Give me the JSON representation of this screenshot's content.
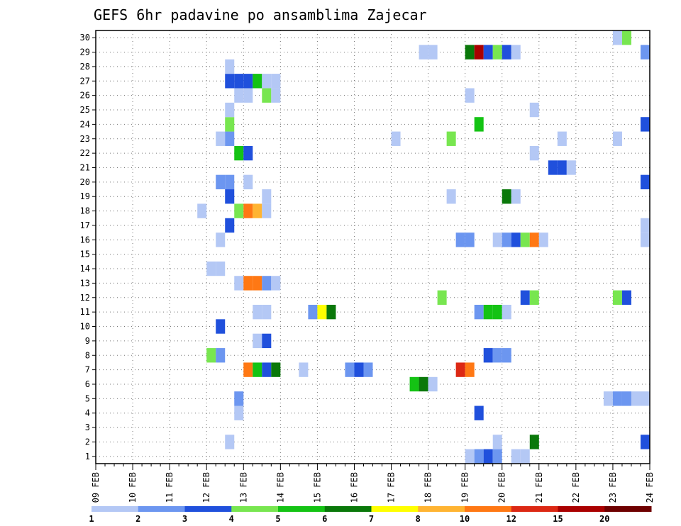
{
  "chart_data": {
    "type": "heatmap",
    "title": "GEFS 6hr padavine po ansamblima Zajecar",
    "xlabel": "",
    "ylabel": "",
    "x_tick_labels": [
      "09 FEB",
      "10 FEB",
      "11 FEB",
      "12 FEB",
      "13 FEB",
      "14 FEB",
      "15 FEB",
      "16 FEB",
      "17 FEB",
      "18 FEB",
      "19 FEB",
      "20 FEB",
      "21 FEB",
      "22 FEB",
      "23 FEB",
      "24 FEB"
    ],
    "y_tick_labels": [
      "1",
      "2",
      "3",
      "4",
      "5",
      "6",
      "7",
      "8",
      "9",
      "10",
      "11",
      "12",
      "13",
      "14",
      "15",
      "16",
      "17",
      "18",
      "19",
      "20",
      "21",
      "22",
      "23",
      "24",
      "25",
      "26",
      "27",
      "28",
      "29",
      "30"
    ],
    "x_unit": "6-hour step (4 per day)",
    "grid": "dotted",
    "color_levels": [
      1,
      2,
      3,
      4,
      5,
      6,
      7,
      8,
      10,
      12,
      15,
      20
    ],
    "colors": [
      "#b4c8f5",
      "#6c96f0",
      "#2050dc",
      "#78e650",
      "#14c314",
      "#0a780a",
      "#ffff00",
      "#ffb432",
      "#ff7814",
      "#dc2814",
      "#aa0000",
      "#6e0000"
    ],
    "legend_labels": [
      "1",
      "2",
      "3",
      "4",
      "5",
      "6",
      "7",
      "8",
      "10",
      "12",
      "15",
      "20"
    ],
    "cells": [
      {
        "m": 0,
        "t": 40.5,
        "c": 0
      },
      {
        "m": 0,
        "t": 41.5,
        "c": 1
      },
      {
        "m": 0,
        "t": 42.5,
        "c": 2
      },
      {
        "m": 0,
        "t": 43.5,
        "c": 1
      },
      {
        "m": 0,
        "t": 45.5,
        "c": 0
      },
      {
        "m": 0,
        "t": 46.5,
        "c": 0
      },
      {
        "m": 1,
        "t": 14.5,
        "c": 0
      },
      {
        "m": 1,
        "t": 43.5,
        "c": 0
      },
      {
        "m": 1,
        "t": 47.5,
        "c": 5
      },
      {
        "m": 1,
        "t": 59.5,
        "c": 2
      },
      {
        "m": 3,
        "t": 15.5,
        "c": 0
      },
      {
        "m": 3,
        "t": 41.5,
        "c": 2
      },
      {
        "m": 4,
        "t": 15.5,
        "c": 1
      },
      {
        "m": 4,
        "t": 55.5,
        "c": 0
      },
      {
        "m": 4,
        "t": 56.5,
        "c": 1
      },
      {
        "m": 4,
        "t": 57.5,
        "c": 1
      },
      {
        "m": 4,
        "t": 58.5,
        "c": 0
      },
      {
        "m": 4,
        "t": 59.5,
        "c": 0
      },
      {
        "m": 5,
        "t": 34.5,
        "c": 4
      },
      {
        "m": 5,
        "t": 35.5,
        "c": 5
      },
      {
        "m": 5,
        "t": 36.5,
        "c": 0
      },
      {
        "m": 6,
        "t": 16.5,
        "c": 8
      },
      {
        "m": 6,
        "t": 17.5,
        "c": 4
      },
      {
        "m": 6,
        "t": 18.5,
        "c": 2
      },
      {
        "m": 6,
        "t": 19.5,
        "c": 5
      },
      {
        "m": 6,
        "t": 22.5,
        "c": 0
      },
      {
        "m": 6,
        "t": 27.5,
        "c": 1
      },
      {
        "m": 6,
        "t": 28.5,
        "c": 2
      },
      {
        "m": 6,
        "t": 29.5,
        "c": 1
      },
      {
        "m": 6,
        "t": 39.5,
        "c": 9
      },
      {
        "m": 6,
        "t": 40.5,
        "c": 8
      },
      {
        "m": 7,
        "t": 12.5,
        "c": 3
      },
      {
        "m": 7,
        "t": 13.5,
        "c": 1
      },
      {
        "m": 7,
        "t": 42.5,
        "c": 2
      },
      {
        "m": 7,
        "t": 43.5,
        "c": 1
      },
      {
        "m": 7,
        "t": 44.5,
        "c": 1
      },
      {
        "m": 8,
        "t": 17.5,
        "c": 0
      },
      {
        "m": 8,
        "t": 18.5,
        "c": 2
      },
      {
        "m": 9,
        "t": 13.5,
        "c": 2
      },
      {
        "m": 10,
        "t": 17.5,
        "c": 0
      },
      {
        "m": 10,
        "t": 18.5,
        "c": 0
      },
      {
        "m": 10,
        "t": 23.5,
        "c": 1
      },
      {
        "m": 10,
        "t": 24.5,
        "c": 6
      },
      {
        "m": 10,
        "t": 25.5,
        "c": 5
      },
      {
        "m": 10,
        "t": 41.5,
        "c": 1
      },
      {
        "m": 10,
        "t": 42.5,
        "c": 4
      },
      {
        "m": 10,
        "t": 43.5,
        "c": 4
      },
      {
        "m": 10,
        "t": 44.5,
        "c": 0
      },
      {
        "m": 11,
        "t": 37.5,
        "c": 3
      },
      {
        "m": 11,
        "t": 46.5,
        "c": 2
      },
      {
        "m": 11,
        "t": 47.5,
        "c": 3
      },
      {
        "m": 11,
        "t": 56.5,
        "c": 3
      },
      {
        "m": 11,
        "t": 57.5,
        "c": 2
      },
      {
        "m": 12,
        "t": 15.5,
        "c": 0
      },
      {
        "m": 12,
        "t": 16.5,
        "c": 8
      },
      {
        "m": 12,
        "t": 17.5,
        "c": 8
      },
      {
        "m": 12,
        "t": 18.5,
        "c": 1
      },
      {
        "m": 12,
        "t": 19.5,
        "c": 0
      },
      {
        "m": 13,
        "t": 12.5,
        "c": 0
      },
      {
        "m": 13,
        "t": 13.5,
        "c": 0
      },
      {
        "m": 15,
        "t": 13.5,
        "c": 0
      },
      {
        "m": 15,
        "t": 39.5,
        "c": 1
      },
      {
        "m": 15,
        "t": 40.5,
        "c": 1
      },
      {
        "m": 15,
        "t": 43.5,
        "c": 0
      },
      {
        "m": 15,
        "t": 44.5,
        "c": 1
      },
      {
        "m": 15,
        "t": 45.5,
        "c": 2
      },
      {
        "m": 15,
        "t": 46.5,
        "c": 3
      },
      {
        "m": 15,
        "t": 47.5,
        "c": 8
      },
      {
        "m": 15,
        "t": 48.5,
        "c": 0
      },
      {
        "m": 15,
        "t": 59.5,
        "c": 0
      },
      {
        "m": 16,
        "t": 14.5,
        "c": 2
      },
      {
        "m": 16,
        "t": 59.5,
        "c": 0
      },
      {
        "m": 17,
        "t": 11.5,
        "c": 0
      },
      {
        "m": 17,
        "t": 15.5,
        "c": 3
      },
      {
        "m": 17,
        "t": 16.5,
        "c": 8
      },
      {
        "m": 17,
        "t": 17.5,
        "c": 7
      },
      {
        "m": 17,
        "t": 18.5,
        "c": 0
      },
      {
        "m": 18,
        "t": 14.5,
        "c": 2
      },
      {
        "m": 18,
        "t": 18.5,
        "c": 0
      },
      {
        "m": 18,
        "t": 38.5,
        "c": 0
      },
      {
        "m": 18,
        "t": 44.5,
        "c": 5
      },
      {
        "m": 18,
        "t": 45.5,
        "c": 0
      },
      {
        "m": 19,
        "t": 13.5,
        "c": 1
      },
      {
        "m": 19,
        "t": 14.5,
        "c": 1
      },
      {
        "m": 19,
        "t": 16.5,
        "c": 0
      },
      {
        "m": 19,
        "t": 59.5,
        "c": 2
      },
      {
        "m": 20,
        "t": 49.5,
        "c": 2
      },
      {
        "m": 20,
        "t": 50.5,
        "c": 2
      },
      {
        "m": 20,
        "t": 51.5,
        "c": 0
      },
      {
        "m": 21,
        "t": 15.5,
        "c": 4
      },
      {
        "m": 21,
        "t": 16.5,
        "c": 2
      },
      {
        "m": 21,
        "t": 47.5,
        "c": 0
      },
      {
        "m": 22,
        "t": 13.5,
        "c": 0
      },
      {
        "m": 22,
        "t": 14.5,
        "c": 1
      },
      {
        "m": 22,
        "t": 32.5,
        "c": 0
      },
      {
        "m": 22,
        "t": 38.5,
        "c": 3
      },
      {
        "m": 22,
        "t": 50.5,
        "c": 0
      },
      {
        "m": 22,
        "t": 56.5,
        "c": 0
      },
      {
        "m": 23,
        "t": 14.5,
        "c": 3
      },
      {
        "m": 23,
        "t": 41.5,
        "c": 4
      },
      {
        "m": 23,
        "t": 59.5,
        "c": 2
      },
      {
        "m": 24,
        "t": 14.5,
        "c": 0
      },
      {
        "m": 24,
        "t": 47.5,
        "c": 0
      },
      {
        "m": 25,
        "t": 15.5,
        "c": 0
      },
      {
        "m": 25,
        "t": 16.5,
        "c": 0
      },
      {
        "m": 25,
        "t": 18.5,
        "c": 3
      },
      {
        "m": 25,
        "t": 19.5,
        "c": 0
      },
      {
        "m": 25,
        "t": 40.5,
        "c": 0
      },
      {
        "m": 26,
        "t": 14.5,
        "c": 2
      },
      {
        "m": 26,
        "t": 15.5,
        "c": 2
      },
      {
        "m": 26,
        "t": 16.5,
        "c": 2
      },
      {
        "m": 26,
        "t": 17.5,
        "c": 4
      },
      {
        "m": 26,
        "t": 18.5,
        "c": 0
      },
      {
        "m": 26,
        "t": 19.5,
        "c": 0
      },
      {
        "m": 27,
        "t": 14.5,
        "c": 0
      },
      {
        "m": 28,
        "t": 35.5,
        "c": 0
      },
      {
        "m": 28,
        "t": 36.5,
        "c": 0
      },
      {
        "m": 28,
        "t": 40.5,
        "c": 5
      },
      {
        "m": 28,
        "t": 41.5,
        "c": 10
      },
      {
        "m": 28,
        "t": 42.5,
        "c": 2
      },
      {
        "m": 28,
        "t": 43.5,
        "c": 3
      },
      {
        "m": 28,
        "t": 44.5,
        "c": 2
      },
      {
        "m": 28,
        "t": 45.5,
        "c": 0
      },
      {
        "m": 28,
        "t": 59.5,
        "c": 1
      },
      {
        "m": 29,
        "t": 56.5,
        "c": 0
      },
      {
        "m": 29,
        "t": 57.5,
        "c": 3
      }
    ]
  }
}
